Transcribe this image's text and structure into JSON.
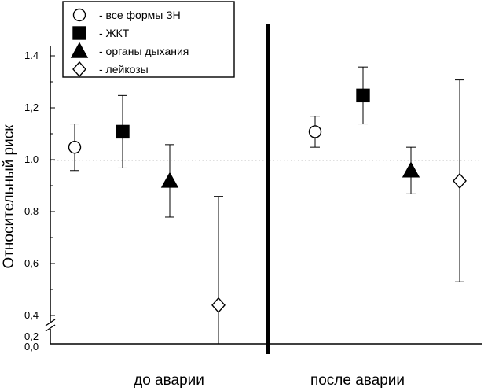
{
  "chart_data": {
    "type": "scatter",
    "title": "",
    "ylabel": "Относительный риск",
    "xlabel": "",
    "ylim": [
      0.0,
      1.45
    ],
    "y_ticks": [
      {
        "value": 0.0,
        "label": "0,0"
      },
      {
        "value": 0.2,
        "label": "0,2"
      },
      {
        "value": 0.4,
        "label": "0,4"
      },
      {
        "value": 0.6,
        "label": "0,6"
      },
      {
        "value": 0.8,
        "label": "0.8"
      },
      {
        "value": 1.0,
        "label": "1.0"
      },
      {
        "value": 1.2,
        "label": "1,2"
      },
      {
        "value": 1.4,
        "label": "1.4"
      }
    ],
    "axis_break_between": [
      0.2,
      0.4
    ],
    "reference_line": {
      "value": 1.0,
      "style": "dotted"
    },
    "groups": [
      "до аварии",
      "после аварии"
    ],
    "group_divider": "thick vertical line",
    "legend_position": "top-left",
    "series": [
      {
        "name": "- все формы ЗН",
        "marker": "circle-open",
        "points": [
          {
            "group": "до аварии",
            "y": 1.05,
            "lower": 0.96,
            "upper": 1.14
          },
          {
            "group": "после аварии",
            "y": 1.11,
            "lower": 1.05,
            "upper": 1.17
          }
        ]
      },
      {
        "name": "- ЖКТ",
        "marker": "square-filled",
        "points": [
          {
            "group": "до аварии",
            "y": 1.11,
            "lower": 0.97,
            "upper": 1.25
          },
          {
            "group": "после аварии",
            "y": 1.25,
            "lower": 1.14,
            "upper": 1.36
          }
        ]
      },
      {
        "name": "- органы дыхания",
        "marker": "triangle-filled",
        "points": [
          {
            "group": "до аварии",
            "y": 0.92,
            "lower": 0.78,
            "upper": 1.06
          },
          {
            "group": "после аварии",
            "y": 0.96,
            "lower": 0.87,
            "upper": 1.05
          }
        ]
      },
      {
        "name": "- лейкозы",
        "marker": "diamond-open",
        "points": [
          {
            "group": "до аварии",
            "y": 0.44,
            "lower": 0.0,
            "upper": 0.86
          },
          {
            "group": "после аварии",
            "y": 0.92,
            "lower": 0.53,
            "upper": 1.31
          }
        ]
      }
    ]
  }
}
